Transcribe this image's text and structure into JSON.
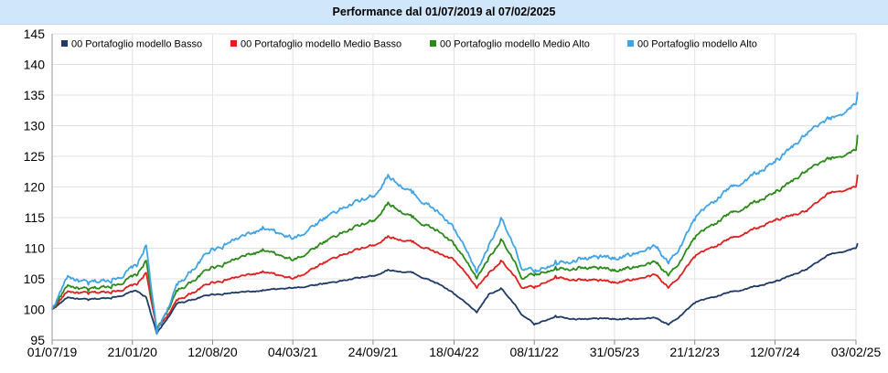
{
  "header": {
    "title": "Performance dal 01/07/2019 al 07/02/2025"
  },
  "chart_data": {
    "type": "line",
    "title": "Performance dal 01/07/2019 al 07/02/2025",
    "xlabel": "",
    "ylabel": "",
    "ylim": [
      95,
      145
    ],
    "y_ticks": [
      95,
      100,
      105,
      110,
      115,
      120,
      125,
      130,
      135,
      140,
      145
    ],
    "x_tick_labels": [
      "01/07/19",
      "21/01/20",
      "12/08/20",
      "04/03/21",
      "24/09/21",
      "18/04/22",
      "08/11/22",
      "31/05/23",
      "21/12/23",
      "12/07/24",
      "03/02/25"
    ],
    "grid": true,
    "legend_position": "top",
    "series": [
      {
        "name": "00 Portafoglio modello Basso",
        "color": "#1f3a64",
        "x": [
          "01/07/19",
          "10/08/19",
          "01/10/19",
          "01/12/19",
          "01/02/20",
          "25/02/20",
          "23/03/20",
          "15/05/20",
          "12/08/20",
          "15/12/20",
          "04/03/21",
          "15/06/21",
          "24/09/21",
          "01/11/21",
          "01/01/22",
          "15/03/22",
          "18/04/22",
          "15/06/22",
          "15/07/22",
          "15/08/22",
          "10/10/22",
          "08/11/22",
          "01/01/23",
          "01/03/23",
          "31/05/23",
          "15/09/23",
          "15/10/23",
          "21/12/23",
          "01/03/24",
          "12/07/24",
          "01/10/24",
          "01/12/24",
          "03/02/25",
          "07/02/25"
        ],
        "values": [
          100,
          102,
          101.5,
          102,
          103,
          102,
          96,
          101,
          102.5,
          103,
          103.5,
          104.5,
          105.5,
          106.5,
          106,
          104,
          102.5,
          99.5,
          102.5,
          103.5,
          99,
          97.5,
          99,
          98.5,
          98.5,
          98.5,
          97.5,
          101,
          102.5,
          104.5,
          106.5,
          109,
          110,
          110.8
        ]
      },
      {
        "name": "00 Portafoglio modello Medio Basso",
        "color": "#e01e1e",
        "x": [
          "01/07/19",
          "10/08/19",
          "01/10/19",
          "01/12/19",
          "01/02/20",
          "25/02/20",
          "23/03/20",
          "15/05/20",
          "12/08/20",
          "15/12/20",
          "04/03/21",
          "15/06/21",
          "24/09/21",
          "01/11/21",
          "01/01/22",
          "15/03/22",
          "18/04/22",
          "15/06/22",
          "15/07/22",
          "15/08/22",
          "10/10/22",
          "08/11/22",
          "01/01/23",
          "01/03/23",
          "31/05/23",
          "15/09/23",
          "15/10/23",
          "21/12/23",
          "01/03/24",
          "12/07/24",
          "01/10/24",
          "01/12/24",
          "03/02/25",
          "07/02/25"
        ],
        "values": [
          100,
          103,
          102.5,
          103,
          104,
          106,
          96.5,
          101.5,
          104.5,
          106,
          105,
          108.5,
          110.5,
          112,
          111,
          109,
          108,
          103.5,
          106,
          108,
          103.5,
          103.5,
          105.5,
          105,
          104.5,
          105.5,
          103.5,
          108.5,
          111,
          114.5,
          116,
          119,
          120,
          122
        ]
      },
      {
        "name": "00 Portafoglio modello Medio Alto",
        "color": "#2a8a18",
        "x": [
          "01/07/19",
          "10/08/19",
          "01/10/19",
          "01/12/19",
          "01/02/20",
          "25/02/20",
          "23/03/20",
          "15/05/20",
          "12/08/20",
          "15/12/20",
          "04/03/21",
          "15/06/21",
          "24/09/21",
          "01/11/21",
          "01/01/22",
          "15/03/22",
          "18/04/22",
          "15/06/22",
          "15/07/22",
          "15/08/22",
          "10/10/22",
          "08/11/22",
          "01/01/23",
          "01/03/23",
          "31/05/23",
          "15/09/23",
          "15/10/23",
          "21/12/23",
          "01/03/24",
          "12/07/24",
          "01/10/24",
          "01/12/24",
          "03/02/25",
          "07/02/25"
        ],
        "values": [
          100,
          104,
          103,
          104,
          105.5,
          108,
          96.5,
          103,
          107,
          109.5,
          108,
          112,
          114.5,
          117.5,
          115,
          112.5,
          110.5,
          105,
          108.5,
          111.5,
          105,
          105.5,
          107,
          107,
          106.5,
          107.5,
          105.5,
          111.5,
          115,
          119,
          122.5,
          124.5,
          126,
          128.5
        ]
      },
      {
        "name": "00 Portafoglio modello Alto",
        "color": "#3fa3e6",
        "x": [
          "01/07/19",
          "10/08/19",
          "01/10/19",
          "01/12/19",
          "01/02/20",
          "25/02/20",
          "23/03/20",
          "15/05/20",
          "12/08/20",
          "15/12/20",
          "04/03/21",
          "15/06/21",
          "24/09/21",
          "01/11/21",
          "01/01/22",
          "15/03/22",
          "18/04/22",
          "15/06/22",
          "15/07/22",
          "15/08/22",
          "10/10/22",
          "08/11/22",
          "01/01/23",
          "01/03/23",
          "31/05/23",
          "15/09/23",
          "15/10/23",
          "21/12/23",
          "01/03/24",
          "12/07/24",
          "01/10/24",
          "01/12/24",
          "03/02/25",
          "07/02/25"
        ],
        "values": [
          100,
          105.5,
          104,
          105,
          107,
          110.5,
          96,
          104,
          110,
          113,
          111.5,
          116,
          118.5,
          122,
          119,
          115.5,
          113,
          106,
          110.5,
          115,
          106.5,
          106,
          108,
          108.5,
          108.5,
          110,
          107.5,
          114.5,
          119,
          124,
          128.5,
          131,
          133.5,
          135.5
        ]
      }
    ]
  }
}
